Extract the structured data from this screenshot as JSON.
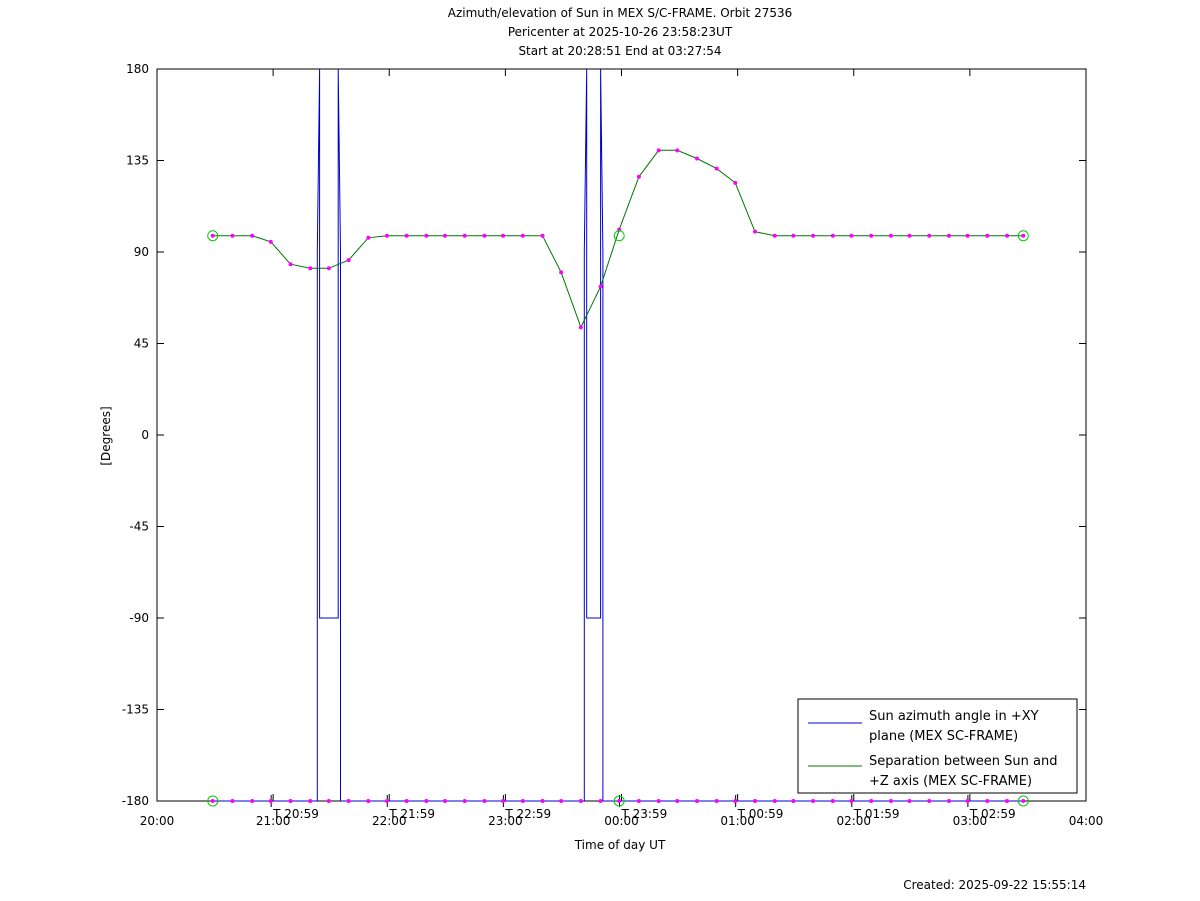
{
  "title_lines": [
    "Azimuth/elevation of Sun in MEX S/C-FRAME.  Orbit 27536",
    "Pericenter at 2025-10-26 23:58:23UT",
    "Start at 20:28:51 End at 03:27:54"
  ],
  "ylabel": "[Degrees]",
  "xlabel": "Time of day UT",
  "created": "Created: 2025-09-22 15:55:14",
  "legend": {
    "azimuth": [
      "Sun azimuth angle in +XY",
      "plane (MEX SC-FRAME)"
    ],
    "separation": [
      "Separation between Sun and",
      "+Z axis (MEX SC-FRAME)"
    ]
  },
  "colors": {
    "azimuth": "#0000cc",
    "separation": "#007700",
    "markers": "#ff00ff",
    "circles": "#00cc00"
  },
  "chart_data": {
    "type": "line",
    "xlabel": "Time of day UT",
    "ylabel": "[Degrees]",
    "xlim_hours": [
      20,
      28
    ],
    "ylim": [
      -180,
      180
    ],
    "y_ticks": [
      180,
      135,
      90,
      45,
      0,
      -45,
      -90,
      -135,
      -180
    ],
    "x_ticks": [
      {
        "h": 20,
        "label": "20:00"
      },
      {
        "h": 21,
        "label": "21:00"
      },
      {
        "h": 22,
        "label": "22:00"
      },
      {
        "h": 23,
        "label": "23:00"
      },
      {
        "h": 24,
        "label": "00:00"
      },
      {
        "h": 25,
        "label": "01:00"
      },
      {
        "h": 26,
        "label": "02:00"
      },
      {
        "h": 27,
        "label": "03:00"
      },
      {
        "h": 28,
        "label": "04:00"
      }
    ],
    "hour_marks": [
      {
        "h": 20.983,
        "label": "20:59"
      },
      {
        "h": 21.983,
        "label": "21:59"
      },
      {
        "h": 22.983,
        "label": "22:59"
      },
      {
        "h": 23.983,
        "label": "23:59"
      },
      {
        "h": 24.983,
        "label": "00:59"
      },
      {
        "h": 25.983,
        "label": "01:59"
      },
      {
        "h": 26.983,
        "label": "02:59"
      }
    ],
    "series": [
      {
        "name": "Sun azimuth angle in +XY plane (MEX SC-FRAME)",
        "x": [
          20.48,
          21.38,
          21.38,
          21.4,
          21.4,
          21.56,
          21.56,
          21.58,
          21.58,
          23.68,
          23.68,
          23.7,
          23.7,
          23.82,
          23.82,
          23.84,
          23.84,
          27.46
        ],
        "y": [
          -180,
          -180,
          90,
          180,
          -90,
          -90,
          180,
          90,
          -180,
          -180,
          90,
          180,
          -90,
          -90,
          180,
          90,
          -180,
          -180
        ]
      },
      {
        "name": "Separation between Sun and +Z axis (MEX SC-FRAME)",
        "x": [
          20.48,
          20.65,
          20.82,
          20.98,
          21.15,
          21.32,
          21.48,
          21.65,
          21.82,
          21.98,
          22.15,
          22.32,
          22.48,
          22.65,
          22.82,
          22.98,
          23.15,
          23.32,
          23.48,
          23.65,
          23.82,
          23.98,
          24.15,
          24.32,
          24.48,
          24.65,
          24.82,
          24.98,
          25.15,
          25.32,
          25.48,
          25.65,
          25.82,
          25.98,
          26.15,
          26.32,
          26.48,
          26.65,
          26.82,
          26.98,
          27.15,
          27.32,
          27.46
        ],
        "y": [
          98,
          98,
          98,
          95,
          84,
          82,
          82,
          86,
          97,
          98,
          98,
          98,
          98,
          98,
          98,
          98,
          98,
          98,
          80,
          53,
          73,
          101,
          127,
          140,
          140,
          136,
          131,
          124,
          100,
          98,
          98,
          98,
          98,
          98,
          98,
          98,
          98,
          98,
          98,
          98,
          98,
          98,
          98
        ]
      }
    ]
  }
}
